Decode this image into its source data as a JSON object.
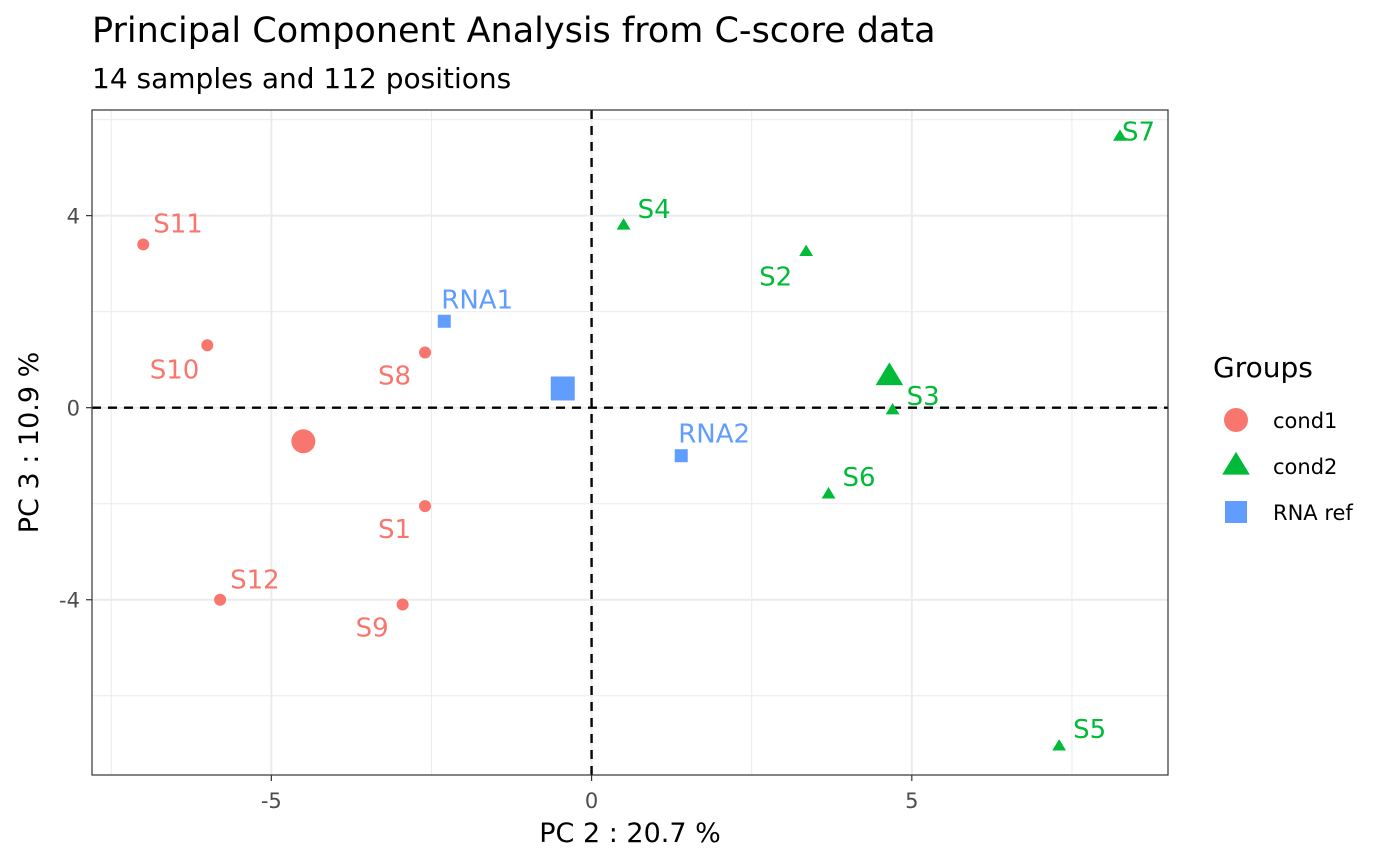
{
  "chart_data": {
    "type": "scatter",
    "title": "Principal Component Analysis from C-score data",
    "subtitle": "14 samples and 112 positions",
    "xlabel": "PC 2 : 20.7 %",
    "ylabel": "PC 3 : 10.9 %",
    "xlim": [
      -7.8,
      9.0
    ],
    "ylim": [
      -7.65,
      6.2
    ],
    "xticks": [
      -5,
      0,
      5
    ],
    "yticks": [
      -4,
      0,
      4
    ],
    "xtick_labels": [
      "-5",
      "0",
      "5"
    ],
    "ytick_labels": [
      "-4",
      "0",
      "4"
    ],
    "grid": true,
    "reference_lines": {
      "x": 0,
      "y": 0,
      "style": "dashed"
    },
    "legend": {
      "title": "Groups",
      "placement": "right",
      "entries": [
        {
          "label": "cond1",
          "shape": "circle",
          "color": "#F8766D"
        },
        {
          "label": "cond2",
          "shape": "triangle",
          "color": "#00BA38"
        },
        {
          "label": "RNA ref",
          "shape": "square",
          "color": "#619CFF"
        }
      ]
    },
    "series": [
      {
        "name": "cond1",
        "shape": "circle",
        "color": "#F8766D",
        "points": [
          {
            "label": "S11",
            "x": -7.0,
            "y": 3.4
          },
          {
            "label": "S10",
            "x": -6.0,
            "y": 1.3
          },
          {
            "label": "S8",
            "x": -2.6,
            "y": 1.15
          },
          {
            "label": "S1",
            "x": -2.6,
            "y": -2.05
          },
          {
            "label": "S12",
            "x": -5.8,
            "y": -4.0
          },
          {
            "label": "S9",
            "x": -2.95,
            "y": -4.1
          }
        ],
        "centroid": {
          "x": -4.5,
          "y": -0.7
        }
      },
      {
        "name": "cond2",
        "shape": "triangle",
        "color": "#00BA38",
        "points": [
          {
            "label": "S7",
            "x": 8.25,
            "y": 5.65
          },
          {
            "label": "S4",
            "x": 0.5,
            "y": 3.8
          },
          {
            "label": "S2",
            "x": 3.35,
            "y": 3.25
          },
          {
            "label": "S3",
            "x": 4.7,
            "y": -0.05
          },
          {
            "label": "S6",
            "x": 3.7,
            "y": -1.8
          },
          {
            "label": "S5",
            "x": 7.3,
            "y": -7.05
          }
        ],
        "centroid": {
          "x": 4.65,
          "y": 0.65
        }
      },
      {
        "name": "RNA ref",
        "shape": "square",
        "color": "#619CFF",
        "points": [
          {
            "label": "RNA1",
            "x": -2.3,
            "y": 1.8
          },
          {
            "label": "RNA2",
            "x": 1.4,
            "y": -1.0
          }
        ],
        "centroid": {
          "x": -0.45,
          "y": 0.4
        }
      }
    ]
  }
}
